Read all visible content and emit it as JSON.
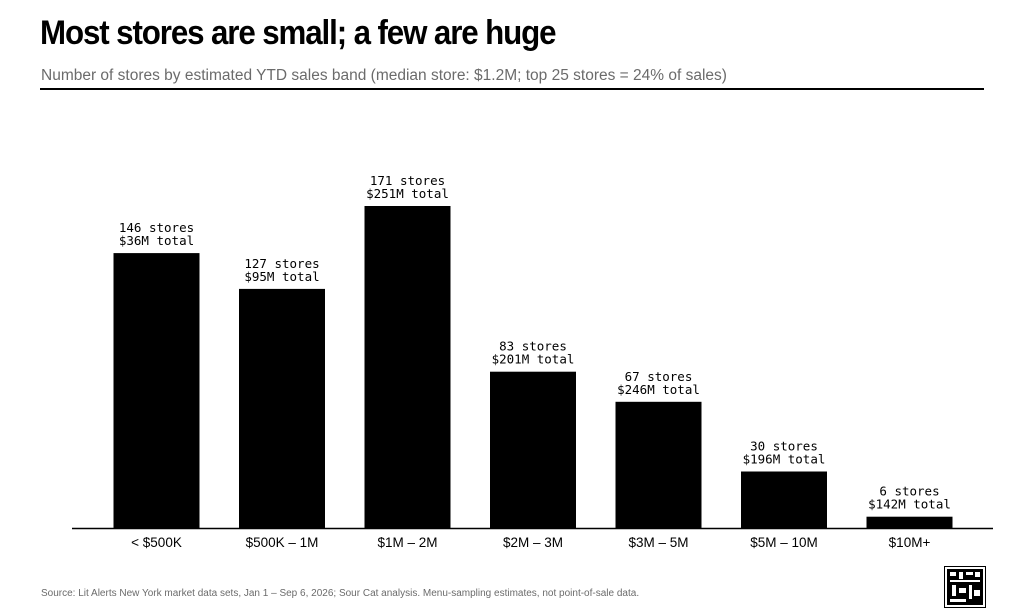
{
  "header": {
    "title": "Most stores are small; a few are huge",
    "subtitle": "Number of stores by estimated YTD sales band (median store: $1.2M; top 25 stores = 24% of sales)"
  },
  "footer": {
    "source": "Source: Lit Alerts New York market data sets, Jan 1 – Sep 6, 2026; Sour Cat analysis. Menu-sampling estimates, not point-of-sale data."
  },
  "colors": {
    "bar": "#000000",
    "axis": "#000000",
    "subtitle": "#6b6b6b"
  },
  "chart_data": {
    "type": "bar",
    "title": "Most stores are small; a few are huge",
    "subtitle": "Number of stores by estimated YTD sales band (median store: $1.2M; top 25 stores = 24% of sales)",
    "categories": [
      "< $500K",
      "$500K – 1M",
      "$1M – 2M",
      "$2M – 3M",
      "$3M – 5M",
      "$5M – 10M",
      "$10M+"
    ],
    "series": [
      {
        "values": [
          146,
          127,
          171,
          83,
          67,
          30,
          6
        ]
      }
    ],
    "data_labels": [
      [
        "146 stores",
        "$36M total"
      ],
      [
        "127 stores",
        "$95M total"
      ],
      [
        "171 stores",
        "$251M total"
      ],
      [
        "83 stores",
        "$201M total"
      ],
      [
        "67 stores",
        "$246M total"
      ],
      [
        "30 stores",
        "$196M total"
      ],
      [
        "6 stores",
        "$142M total"
      ]
    ],
    "ylim": [
      0,
      171
    ],
    "grid": false,
    "legend": "none",
    "xlabel": "",
    "ylabel": ""
  }
}
